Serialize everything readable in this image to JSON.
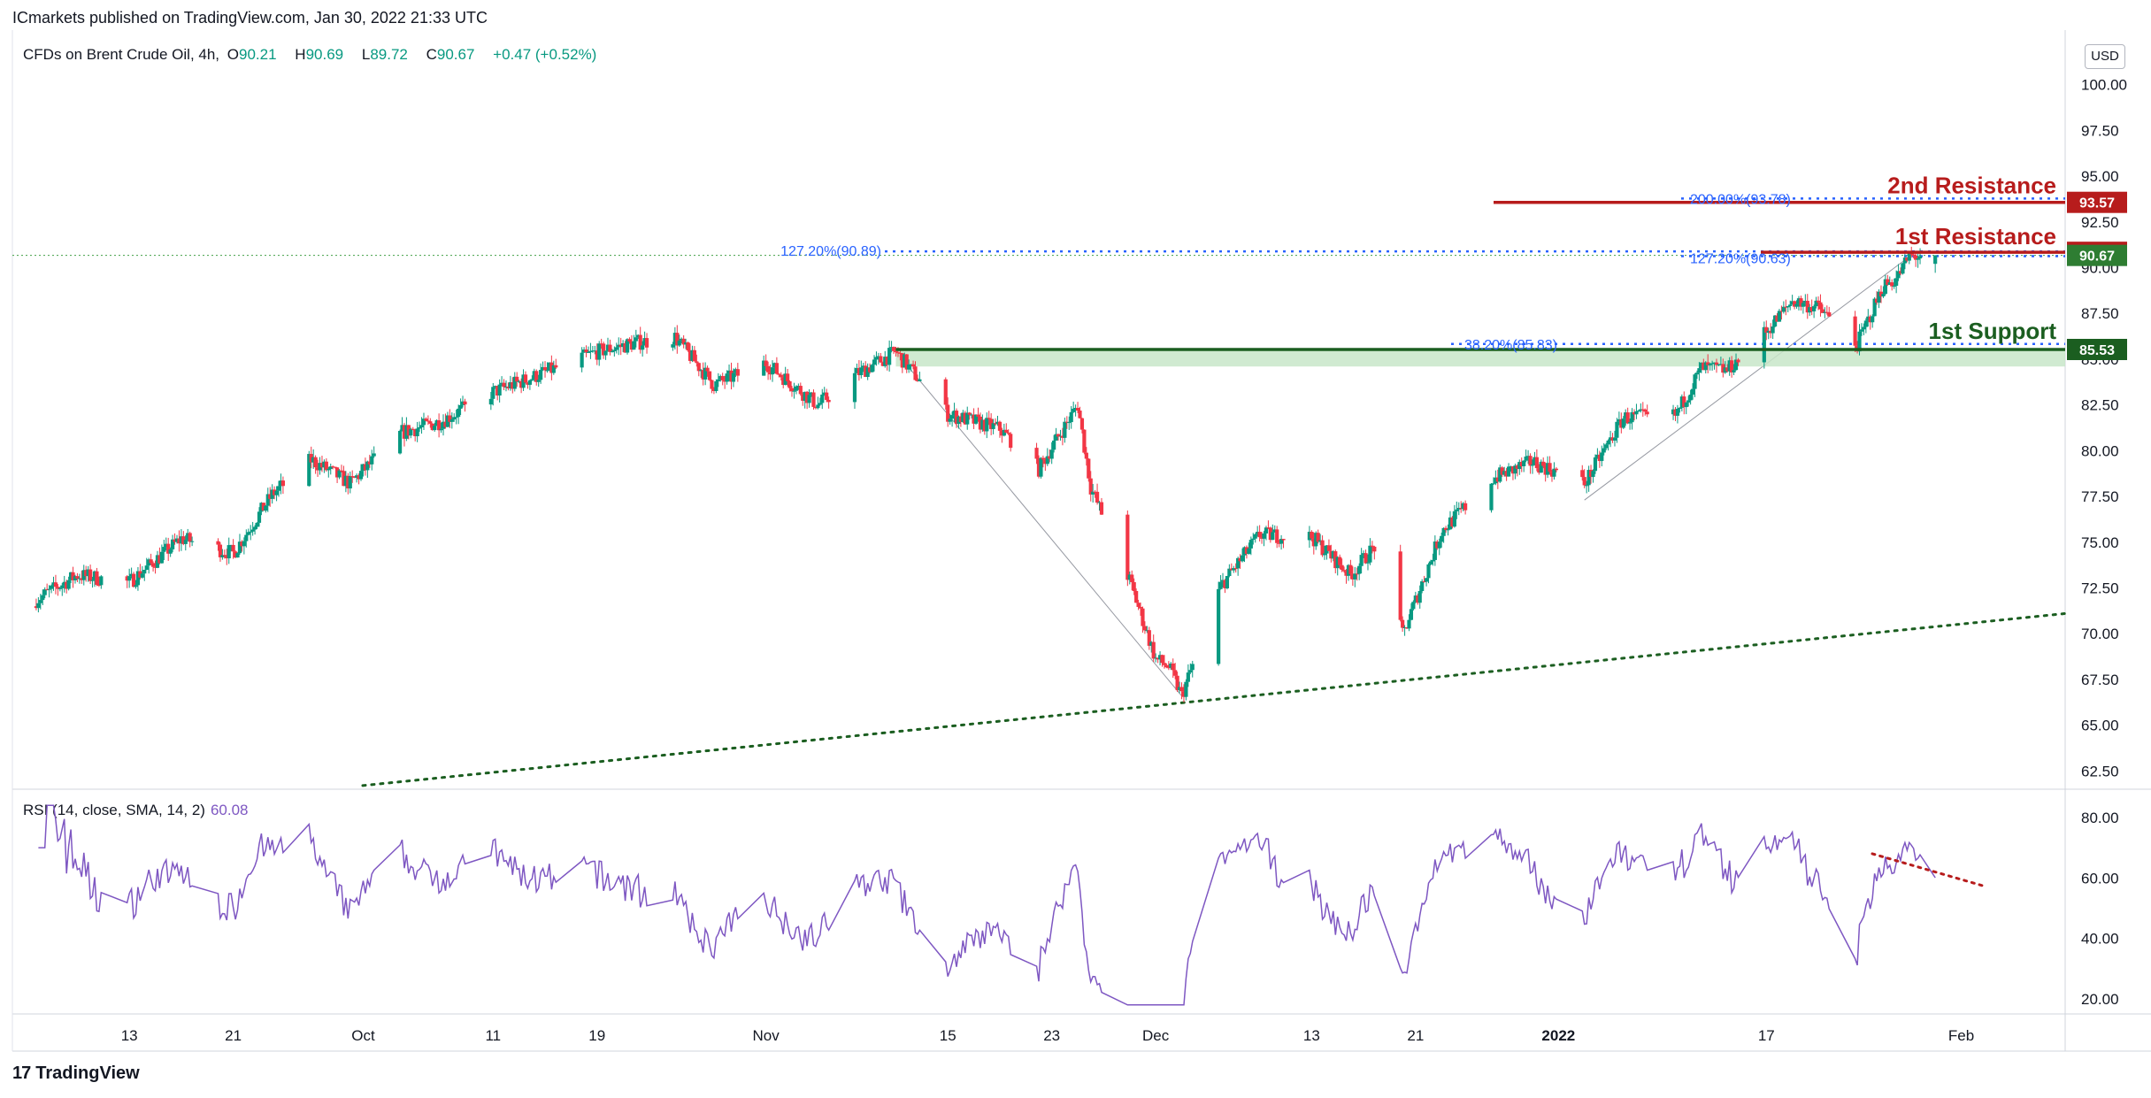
{
  "header": {
    "publisher": "ICmarkets published on TradingView.com, Jan 30, 2022 21:33 UTC"
  },
  "legend": {
    "symbol": "CFDs on Brent Crude Oil, 4h,",
    "open_label": "O",
    "open": "90.21",
    "high_label": "H",
    "high": "90.69",
    "low_label": "L",
    "low": "89.72",
    "close_label": "C",
    "close": "90.67",
    "change": "+0.47 (+0.52%)"
  },
  "rsi_legend": {
    "label": "RSI (14, close, SMA, 14, 2)",
    "value": "60.08"
  },
  "currency": "USD",
  "brand": {
    "logo": "17",
    "name": "TradingView"
  },
  "colors": {
    "up": "#089981",
    "down": "#f23645",
    "resistance": "#b71c1c",
    "support": "#1b5e20",
    "support_zone": "#c8e6c9",
    "fib": "#2962ff",
    "rsi": "#7e57c2",
    "trend_dotted": "#1b5e20",
    "current_price": "#2e7d32"
  },
  "chart_data": [
    {
      "type": "candlestick",
      "title": "CFDs on Brent Crude Oil, 4h",
      "x_labels": [
        "13",
        "21",
        "Oct",
        "11",
        "19",
        "Nov",
        "15",
        "23",
        "Dec",
        "13",
        "21",
        "2022",
        "17",
        "Feb"
      ],
      "y_ticks": [
        "100.00",
        "97.50",
        "95.00",
        "92.50",
        "90.00",
        "87.50",
        "85.00",
        "82.50",
        "80.00",
        "77.50",
        "75.00",
        "72.50",
        "70.00",
        "67.50",
        "65.00",
        "62.50"
      ],
      "ylim": [
        61.5,
        102.5
      ],
      "trend_points": [
        [
          "2021-09-05",
          71.5
        ],
        [
          "2021-09-09",
          73.2
        ],
        [
          "2021-09-13",
          72.8
        ],
        [
          "2021-09-17",
          75.2
        ],
        [
          "2021-09-21",
          74.4
        ],
        [
          "2021-09-24",
          77.6
        ],
        [
          "2021-09-27",
          79.5
        ],
        [
          "2021-09-30",
          78.2
        ],
        [
          "2021-10-04",
          81.0
        ],
        [
          "2021-10-07",
          81.6
        ],
        [
          "2021-10-11",
          83.2
        ],
        [
          "2021-10-14",
          84.0
        ],
        [
          "2021-10-19",
          85.4
        ],
        [
          "2021-10-22",
          85.9
        ],
        [
          "2021-10-25",
          86.2
        ],
        [
          "2021-10-28",
          83.6
        ],
        [
          "2021-11-01",
          84.8
        ],
        [
          "2021-11-05",
          82.5
        ],
        [
          "2021-11-08",
          84.2
        ],
        [
          "2021-11-11",
          85.4
        ],
        [
          "2021-11-15",
          82.0
        ],
        [
          "2021-11-19",
          81.2
        ],
        [
          "2021-11-22",
          79.0
        ],
        [
          "2021-11-25",
          82.5
        ],
        [
          "2021-11-26",
          78.0
        ],
        [
          "2021-11-29",
          72.9
        ],
        [
          "2021-12-01",
          68.6
        ],
        [
          "2021-12-02",
          68.2
        ],
        [
          "2021-12-03",
          66.6
        ],
        [
          "2021-12-06",
          72.6
        ],
        [
          "2021-12-09",
          75.4
        ],
        [
          "2021-12-13",
          75.3
        ],
        [
          "2021-12-16",
          73.2
        ],
        [
          "2021-12-18",
          74.9
        ],
        [
          "2021-12-20",
          69.9
        ],
        [
          "2021-12-23",
          75.6
        ],
        [
          "2021-12-27",
          78.5
        ],
        [
          "2021-12-30",
          79.4
        ],
        [
          "2022-01-03",
          78.2
        ],
        [
          "2022-01-06",
          81.8
        ],
        [
          "2022-01-10",
          81.9
        ],
        [
          "2022-01-12",
          84.5
        ],
        [
          "2022-01-14",
          84.4
        ],
        [
          "2022-01-17",
          86.5
        ],
        [
          "2022-01-19",
          88.2
        ],
        [
          "2022-01-21",
          87.8
        ],
        [
          "2022-01-24",
          85.8
        ],
        [
          "2022-01-26",
          89.0
        ],
        [
          "2022-01-27",
          89.4
        ],
        [
          "2022-01-28",
          90.6
        ],
        [
          "2022-01-30",
          90.67
        ]
      ],
      "levels": [
        {
          "label": "2nd Resistance",
          "value": 93.57,
          "color": "#b71c1c"
        },
        {
          "label": "1st Resistance",
          "value": 90.84,
          "color": "#b71c1c"
        },
        {
          "label": "1st Support",
          "value": 85.53,
          "color": "#1b5e20"
        }
      ],
      "current_price": 90.67,
      "support_zone": [
        84.6,
        85.53
      ],
      "fib_labels": [
        {
          "text": "127.20%(90.89)",
          "value": 90.89
        },
        {
          "text": "127.20%(90.63)",
          "value": 90.63
        },
        {
          "text": "200.00%(93.78)",
          "value": 93.78
        },
        {
          "text": "38.20%(85.83)",
          "value": 85.83
        }
      ]
    },
    {
      "type": "line",
      "title": "RSI (14, close, SMA, 14, 2)",
      "y_ticks": [
        "80.00",
        "60.00",
        "40.00",
        "20.00"
      ],
      "ylim": [
        15,
        87
      ],
      "last_value": 60.08
    }
  ]
}
